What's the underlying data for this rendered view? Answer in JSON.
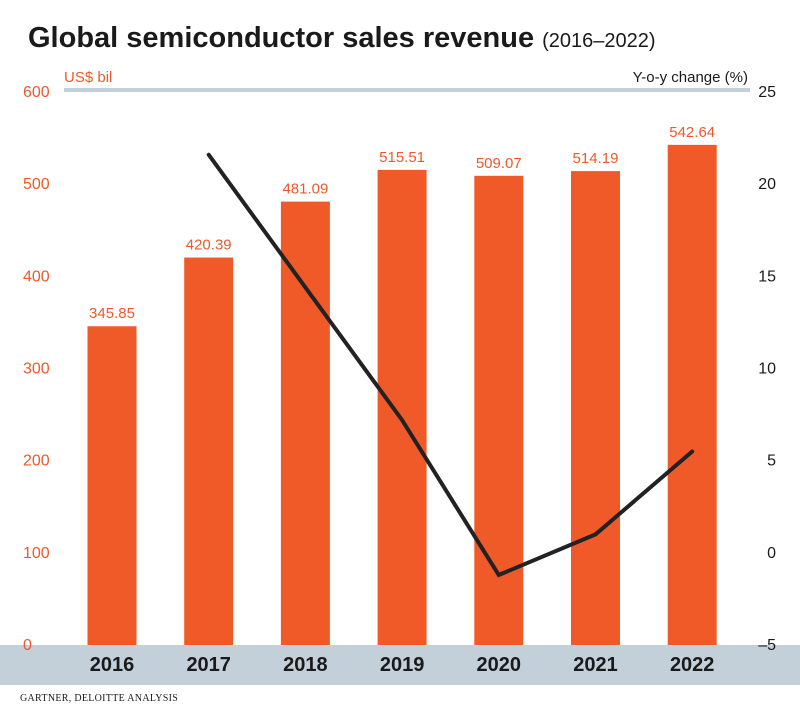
{
  "chart_data": {
    "type": "bar",
    "title": "Global semiconductor sales revenue",
    "subtitle": "(2016–2022)",
    "ylabel_left": "US$ bil",
    "ylabel_right": "Y-o-y change (%)",
    "categories": [
      "2016",
      "2017",
      "2018",
      "2019",
      "2020",
      "2021",
      "2022"
    ],
    "series": [
      {
        "type": "bar",
        "axis": "left",
        "values": [
          345.85,
          420.39,
          481.09,
          515.51,
          509.07,
          514.19,
          542.64
        ],
        "labels": [
          "345.85",
          "420.39",
          "481.09",
          "515.51",
          "509.07",
          "514.19",
          "542.64"
        ]
      },
      {
        "type": "line",
        "axis": "right",
        "values": [
          null,
          21.6,
          14.4,
          7.2,
          -1.2,
          1.0,
          5.5
        ]
      }
    ],
    "ylim_left": [
      0,
      600
    ],
    "yticks_left": [
      "0",
      "100",
      "200",
      "300",
      "400",
      "500",
      "600"
    ],
    "ylim_right": [
      -5,
      25
    ],
    "yticks_right": [
      "–5",
      "0",
      "5",
      "10",
      "15",
      "20",
      "25"
    ],
    "grid": false,
    "colors": {
      "bar": "#f05a28",
      "line": "#222222",
      "band": "#c3d0d9",
      "left_axis": "#ec5a2b"
    },
    "source": "GARTNER, DELOITTE ANALYSIS"
  }
}
